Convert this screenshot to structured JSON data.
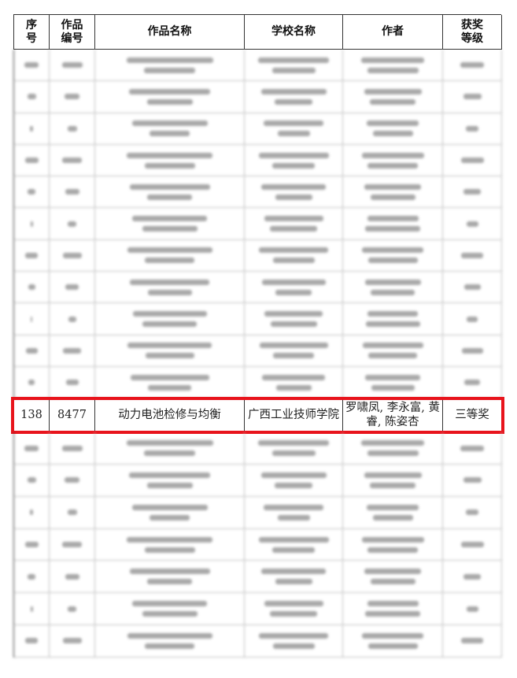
{
  "table": {
    "headers": [
      "序\n号",
      "作品\n编号",
      "作品名称",
      "学校名称",
      "作者",
      "获奖\n等级"
    ],
    "highlighted_row": {
      "serial": "138",
      "work_id": "8477",
      "work_name": "动力电池检修与均衡",
      "school": "广西工业技师学院",
      "authors": "罗啸凤, 李永富, 黄睿, 陈姿杏",
      "award": "三等奖"
    },
    "highlight_color": "#e8141c",
    "blurred_rows_above": 11,
    "blurred_rows_below": 7
  }
}
